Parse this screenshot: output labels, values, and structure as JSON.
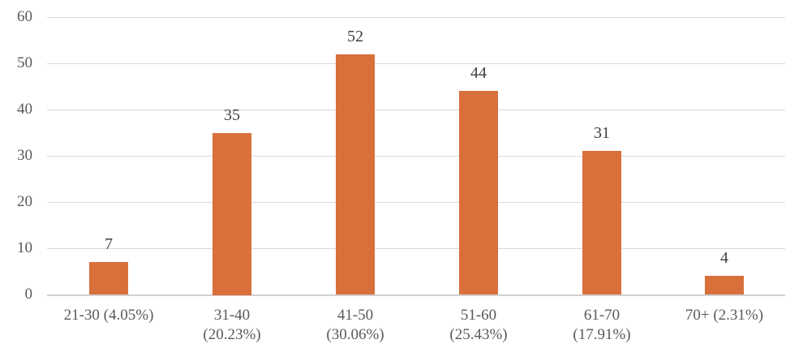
{
  "chart_data": {
    "type": "bar",
    "title": "",
    "xlabel": "",
    "ylabel": "",
    "categories": [
      "21-30 (4.05%)",
      "31-40\n(20.23%)",
      "41-50\n(30.06%)",
      "51-60\n(25.43%)",
      "61-70\n(17.91%)",
      "70+ (2.31%)"
    ],
    "values": [
      7,
      35,
      52,
      44,
      31,
      4
    ],
    "data_labels": [
      "7",
      "35",
      "52",
      "44",
      "31",
      "4"
    ],
    "ylim": [
      0,
      60
    ],
    "yticks": [
      "0",
      "10",
      "20",
      "30",
      "40",
      "50",
      "60"
    ],
    "grid": true,
    "legend": null,
    "bar_color": "#d9703c"
  }
}
